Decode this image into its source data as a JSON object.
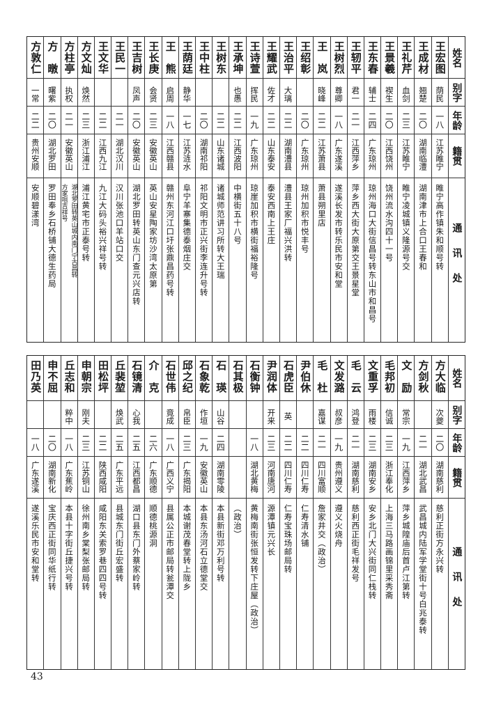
{
  "header": {
    "name": "姓名",
    "alias": "别字",
    "age": "年龄",
    "origin": "籍贯",
    "address": "通讯处"
  },
  "top": {
    "rows": [
      {
        "name": "王宏图",
        "alias": "荫民",
        "age": "一八",
        "origin": "江苏睢宁",
        "address": "睢宁高作镇朱和顺号转"
      },
      {
        "name": "王成材",
        "alias": "翘楚",
        "age": "二〇",
        "origin": "湖南临澧",
        "address": "湖南津市上合口王春和"
      },
      {
        "name": "王礼芹",
        "alias": "血剑",
        "age": "二三",
        "origin": "江苏睢宁",
        "address": "睢宁凌城镇义隆源号交"
      },
      {
        "name": "王景羲",
        "alias": "禊生",
        "age": "二〇",
        "origin": "江西饶州",
        "address": "饶州流水沟四十一号"
      },
      {
        "name": "王东春",
        "alias": "辅士",
        "age": "二四",
        "origin": "广东琼州",
        "address": "琼州海口大街信昌号转东山市和昌号"
      },
      {
        "name": "王轫平",
        "alias": "君一",
        "age": "二一",
        "origin": "江西萍乡",
        "address": "萍乡西大街大原第交王景星堂"
      },
      {
        "name": "王树烈",
        "alias": "尊卿",
        "age": "一八",
        "origin": "广东遂溪",
        "address": "遂溪长发市转乐民市安和堂"
      },
      {
        "name": "王　岚",
        "alias": "晓峰",
        "age": "二二",
        "origin": "江苏萧县",
        "address": "萧县朔里店"
      },
      {
        "name": "王绍彰",
        "alias": "",
        "age": "二〇",
        "origin": "广东琼州",
        "address": "琼州加积市悦丰号"
      },
      {
        "name": "王治平",
        "alias": "大璃",
        "age": "二二",
        "origin": "湖南澧县",
        "address": "澧县王家厂福兴洪转"
      },
      {
        "name": "王耀武",
        "alias": "佐才",
        "age": "二二",
        "origin": "山东泰安",
        "address": "泰安西南上王庄"
      },
      {
        "name": "王诗萱",
        "alias": "挥民",
        "age": "一九",
        "origin": "广东琼州",
        "address": "琼崖加积市横街福裕隆号"
      },
      {
        "name": "王承坤",
        "alias": "也愚",
        "age": "二二",
        "origin": "江西波阳",
        "address": "中横街五十八号"
      },
      {
        "name": "王树东",
        "alias": "",
        "age": "二二",
        "origin": "山东诸城",
        "address": "诸城师范讲习所转大王瑞"
      },
      {
        "name": "王中柱",
        "alias": "",
        "age": "二〇",
        "origin": "湖南祁阳",
        "address": "祁阳文明市正兴街李连升号转"
      },
      {
        "name": "王荫廷",
        "alias": "静华",
        "age": "一七",
        "origin": "江苏涟水",
        "address": "阜宁羊寨集德泰烟庄交"
      },
      {
        "name": "王　熊",
        "alias": "启周",
        "age": "一八",
        "origin": "江西赣县",
        "address": "赣州东河江口圩张鼎昌药号转"
      },
      {
        "name": "王长庚",
        "alias": "会贤",
        "age": "二三",
        "origin": "安徽英山",
        "address": "英山安星陶家坊沙湾太原第"
      },
      {
        "name": "王吉树",
        "alias": "凤声",
        "age": "二〇",
        "origin": "安徽英山",
        "address": "湖北罗田转英山东门查元兴店转"
      },
      {
        "name": "王民一",
        "alias": "",
        "age": "二一",
        "origin": "湖北汉川",
        "address": "汉川张池口羊站口交"
      },
      {
        "name": "王文华",
        "alias": "",
        "age": "二二",
        "origin": "江西九江",
        "address": "九江大码头裕兴祥号转"
      },
      {
        "name": "方文灿",
        "alias": "焕然",
        "age": "二三",
        "origin": "浙江浦江",
        "address": "浦江黄宅市正泰号转"
      },
      {
        "name": "方柱亭",
        "alias": "执权",
        "age": "二一",
        "origin": "安徽英山",
        "address": "湖北罗田转英山城内南门宁古昌转",
        "address_extra": "方家咀吉祥号"
      },
      {
        "name": "方　暾",
        "alias": "曙紫",
        "age": "二〇",
        "origin": "湖北罗田",
        "address": "罗田奉乡石桥铺大德生药局"
      },
      {
        "name": "方敦仁",
        "alias": "一常",
        "age": "二二",
        "origin": "贵州安顺",
        "address": "安顺碧漾湾"
      }
    ]
  },
  "bottom": {
    "rows": [
      {
        "name": "方大临",
        "alias": "次夔",
        "age": "二〇",
        "origin": "湖南慈利",
        "address": "慈利正街方永兴转"
      },
      {
        "name": "方剑秋",
        "alias": "",
        "age": "二一",
        "origin": "湖北武昌",
        "address": "武昌城内陆军学堂街十号白兆泰转"
      },
      {
        "name": "文　励",
        "alias": "常宗",
        "age": "一九",
        "origin": "江西萍乡",
        "address": "萍乡城隍庙后首卢江第转"
      },
      {
        "name": "毛邦初",
        "alias": "信诚",
        "age": "二三",
        "origin": "浙江奉化",
        "address": "上海三马路画锦里采秀斋"
      },
      {
        "name": "文重孚",
        "alias": "雨楼",
        "age": "二三",
        "origin": "湖南安乡",
        "address": "安乡北门大兴街同仁栈转"
      },
      {
        "name": "毛　云",
        "alias": "鸿登",
        "age": "二一",
        "origin": "湖南慈利",
        "address": "慈利西正街毛祥发号"
      },
      {
        "name": "文发潞",
        "alias": "叔彦",
        "age": "一九",
        "origin": "贵州遵义",
        "address": "遵义火烧舟"
      },
      {
        "name": "毛　杜",
        "alias": "嘉谋",
        "age": "二一",
        "origin": "四川富顺",
        "address": "詹家井交（政治）"
      },
      {
        "name": "尹伯休",
        "alias": "",
        "age": "二二",
        "origin": "四川仁寿",
        "address": "仁寿清水铺"
      },
      {
        "name": "石虎臣",
        "alias": "英",
        "age": "二二",
        "origin": "四川仁寿",
        "address": "仁寿宝珠场邮局转"
      },
      {
        "name": "尹润体",
        "alias": "开来",
        "age": "二三",
        "origin": "河南唐河",
        "address": "源潭镇元兴长"
      },
      {
        "name": "石衡钟",
        "alias": "",
        "age": "一八",
        "origin": "湖北黄梅",
        "address": "黄梅南街张恒发转下庄屋（政治）"
      },
      {
        "name": "石其极",
        "alias": "",
        "age": "",
        "origin": "",
        "address": "（政治）"
      },
      {
        "name": "石　瑛",
        "alias": "山谷",
        "age": "二四",
        "origin": "湖南零陵",
        "address": "本县新街邓万利号转"
      },
      {
        "name": "石象乾",
        "alias": "作垣",
        "age": "一九",
        "origin": "安徽英山",
        "address": "本县东汤河石立德堂交"
      },
      {
        "name": "邱之纪",
        "alias": "帛臣",
        "age": "二三",
        "origin": "广东揭阳",
        "address": "本城谢茂春堂转上陇乡"
      },
      {
        "name": "石世伟",
        "alias": "竟成",
        "age": "一八",
        "origin": "广西义宁",
        "address": "县属公正市邮局转瓮潭交"
      },
      {
        "name": "介　克",
        "alias": "",
        "age": "二六",
        "origin": "广东顺德",
        "address": "顺德桃源洞"
      },
      {
        "name": "石镜清",
        "alias": "心我",
        "age": "二五",
        "origin": "江西都昌",
        "address": "湖口县东门外蔡家岭转"
      },
      {
        "name": "丘裴堃",
        "alias": "焕武",
        "age": "二五",
        "origin": "广东平远",
        "address": "县城东门街丘宏盛转"
      },
      {
        "name": "田松坪",
        "alias": "",
        "age": "二二",
        "origin": "陕西咸阳",
        "address": "咸阳东关索罗巷四四号转"
      },
      {
        "name": "申朝宗",
        "alias": "刚夫",
        "age": "二三",
        "origin": "江苏铜山",
        "address": "徐州南乡棠梨张邮局转"
      },
      {
        "name": "丘志和",
        "alias": "粹中",
        "age": "一八",
        "origin": "广东蕉岭",
        "address": "本县十字街丘捷兴号转"
      },
      {
        "name": "申不屈",
        "alias": "",
        "age": "二〇",
        "origin": "湖南新化",
        "address": "宝庆西正街同华纸行转"
      },
      {
        "name": "田乃英",
        "alias": "",
        "age": "一八",
        "origin": "广东遂溪",
        "address": "遂溪乐民市安和堂转"
      }
    ]
  },
  "page_number": "43"
}
